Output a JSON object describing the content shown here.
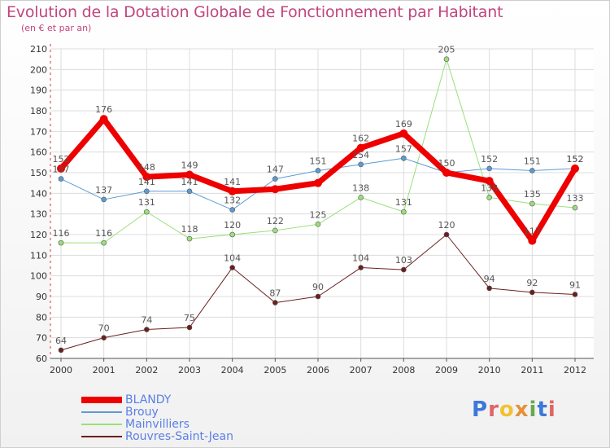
{
  "title": "Evolution de la Dotation Globale de Fonctionnement par Habitant",
  "subtitle": "(en € et par an)",
  "logo": {
    "text": "Proxiti",
    "letters": [
      {
        "ch": "P",
        "color": "#3c78d8"
      },
      {
        "ch": "r",
        "color": "#e06666"
      },
      {
        "ch": "o",
        "color": "#f1c232"
      },
      {
        "ch": "x",
        "color": "#e69138"
      },
      {
        "ch": "i",
        "color": "#6aa84f"
      },
      {
        "ch": "t",
        "color": "#3c78d8"
      },
      {
        "ch": "i",
        "color": "#e06666"
      }
    ]
  },
  "chart_data": {
    "type": "line",
    "title": "Evolution de la Dotation Globale de Fonctionnement par Habitant",
    "subtitle": "(en € et par an)",
    "x": [
      "2000",
      "2001",
      "2002",
      "2003",
      "2004",
      "2005",
      "2006",
      "2007",
      "2008",
      "2009",
      "2010",
      "2011",
      "2012"
    ],
    "ylim": [
      60,
      210
    ],
    "yticks": [
      60,
      70,
      80,
      90,
      100,
      110,
      120,
      130,
      140,
      150,
      160,
      170,
      180,
      190,
      200,
      210
    ],
    "grid": true,
    "legend_position": "bottom-left",
    "series": [
      {
        "name": "BLANDY",
        "color": "#ee0000",
        "width": 7,
        "values": [
          152,
          176,
          148,
          149,
          141,
          142,
          145,
          162,
          169,
          150,
          146,
          117,
          152
        ],
        "labels": [
          "152",
          "176",
          "148",
          "149",
          "141",
          "",
          "",
          "162",
          "169",
          "",
          "",
          "117",
          "152"
        ]
      },
      {
        "name": "Brouy",
        "color": "#5b9bd5",
        "width": 1,
        "values": [
          147,
          137,
          141,
          141,
          132,
          147,
          151,
          154,
          157,
          150,
          152,
          151,
          152
        ],
        "labels": [
          "147",
          "137",
          "141",
          "141",
          "132",
          "147",
          "151",
          "154",
          "157",
          "150",
          "152",
          "151",
          "152"
        ]
      },
      {
        "name": "Mainvilliers",
        "color": "#99e07a",
        "width": 1,
        "values": [
          116,
          116,
          131,
          118,
          120,
          122,
          125,
          138,
          131,
          205,
          138,
          135,
          133
        ],
        "labels": [
          "116",
          "116",
          "131",
          "118",
          "120",
          "122",
          "125",
          "138",
          "131",
          "205",
          "138",
          "135",
          "133"
        ]
      },
      {
        "name": "Rouvres-Saint-Jean",
        "color": "#6b1f1f",
        "width": 1,
        "values": [
          64,
          70,
          74,
          75,
          104,
          87,
          90,
          104,
          103,
          120,
          94,
          92,
          91
        ],
        "labels": [
          "64",
          "70",
          "74",
          "75",
          "104",
          "87",
          "90",
          "104",
          "103",
          "120",
          "94",
          "92",
          "91"
        ]
      }
    ]
  }
}
